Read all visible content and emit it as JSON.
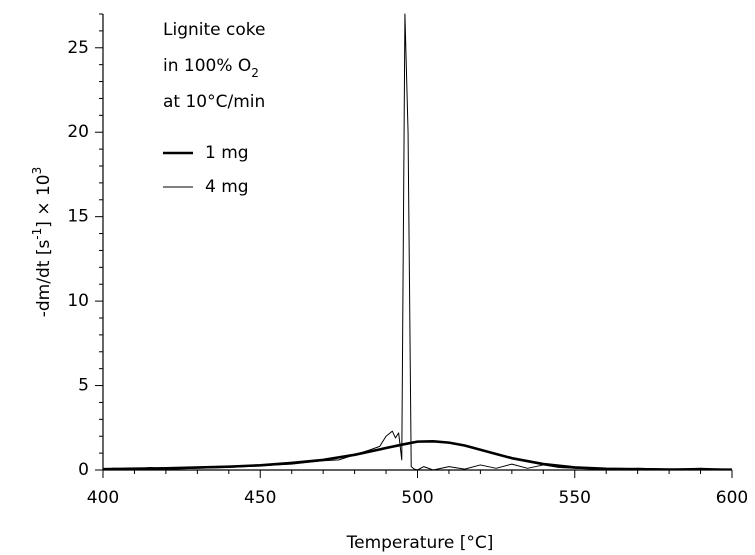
{
  "chart_data": {
    "type": "line",
    "xlabel": "Temperature  [°C]",
    "ylabel_parts": [
      {
        "text": "-dm/dt  [s"
      },
      {
        "text": "-1",
        "sup": true
      },
      {
        "text": "]  × 10"
      },
      {
        "text": "3",
        "sup": true
      }
    ],
    "annotation_lines": [
      [
        {
          "text": "Lignite coke"
        }
      ],
      [
        {
          "text": "in 100% O"
        },
        {
          "text": "2",
          "sub": true
        }
      ],
      [
        {
          "text": "at 10°C/min"
        }
      ]
    ],
    "xlim": [
      400,
      600
    ],
    "xticks": [
      400,
      450,
      500,
      550,
      600
    ],
    "xminorticks": [
      410,
      420,
      430,
      440,
      460,
      470,
      480,
      490,
      510,
      520,
      530,
      540,
      560,
      570,
      580,
      590
    ],
    "ylim": [
      0,
      27
    ],
    "yticks": [
      0,
      5,
      10,
      15,
      20,
      25
    ],
    "yminorticks": [
      1,
      2,
      3,
      4,
      6,
      7,
      8,
      9,
      11,
      12,
      13,
      14,
      16,
      17,
      18,
      19,
      21,
      22,
      23,
      24,
      26,
      27
    ],
    "legend": "upper left",
    "series": [
      {
        "name": "1 mg",
        "color": "#000000",
        "width": 2.6,
        "x": [
          400,
          420,
          440,
          450,
          460,
          470,
          480,
          490,
          495,
          500,
          505,
          510,
          515,
          520,
          525,
          530,
          540,
          550,
          560,
          580,
          600
        ],
        "values": [
          0.05,
          0.1,
          0.2,
          0.28,
          0.42,
          0.6,
          0.9,
          1.3,
          1.5,
          1.68,
          1.7,
          1.62,
          1.45,
          1.2,
          0.95,
          0.7,
          0.35,
          0.15,
          0.07,
          0.03,
          0.02
        ]
      },
      {
        "name": "4 mg",
        "color": "#000000",
        "width": 1,
        "x": [
          403,
          410,
          415,
          420,
          430,
          440,
          450,
          455,
          460,
          465,
          470,
          475,
          480,
          485,
          488,
          490,
          492,
          493,
          494,
          495,
          496,
          497,
          498,
          499,
          500,
          502,
          505,
          510,
          515,
          520,
          525,
          530,
          535,
          540,
          545,
          550,
          560,
          570,
          580,
          590,
          598
        ],
        "values": [
          0.1,
          0.05,
          0.15,
          0.05,
          0.1,
          0.15,
          0.25,
          0.3,
          0.35,
          0.45,
          0.55,
          0.6,
          0.9,
          1.2,
          1.4,
          2.0,
          2.3,
          1.9,
          2.2,
          0.6,
          27,
          20,
          0.2,
          0.05,
          0,
          0.2,
          0,
          0.2,
          0.05,
          0.3,
          0.1,
          0.35,
          0.1,
          0.3,
          0.15,
          0.1,
          0.05,
          0.1,
          0.05,
          0.1,
          0.05
        ]
      }
    ]
  }
}
